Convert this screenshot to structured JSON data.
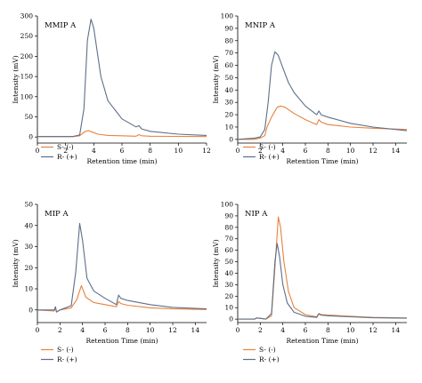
{
  "colors": {
    "s_minus": "#e8823c",
    "r_plus": "#5d6f8a"
  },
  "chart_data": [
    {
      "type": "line",
      "title": "MMIP A",
      "xlabel": "Retention time (min)",
      "ylabel": "Intensity (mV)",
      "xlim": [
        0,
        12
      ],
      "ylim": [
        -15,
        300
      ],
      "xticks": [
        0,
        2,
        4,
        6,
        8,
        10,
        12
      ],
      "yticks": [
        0,
        50,
        100,
        150,
        200,
        250,
        300
      ],
      "legend": [
        "S- (-)",
        "R- (+)"
      ],
      "series": [
        {
          "name": "S- (-)",
          "x": [
            0,
            2.5,
            3.0,
            3.3,
            3.6,
            3.9,
            4.3,
            5.0,
            6.0,
            7.0,
            7.2,
            7.4,
            8,
            10,
            12
          ],
          "y": [
            1,
            1,
            3,
            12,
            16,
            12,
            7,
            4,
            3,
            2,
            6,
            3,
            2,
            1.5,
            1
          ]
        },
        {
          "name": "R- (+)",
          "x": [
            0,
            2.5,
            3.0,
            3.3,
            3.55,
            3.8,
            4.0,
            4.5,
            5.0,
            6.0,
            7.0,
            7.2,
            7.4,
            8,
            10,
            12
          ],
          "y": [
            1,
            1,
            5,
            70,
            240,
            292,
            270,
            150,
            90,
            45,
            25,
            28,
            20,
            14,
            7,
            4
          ]
        }
      ]
    },
    {
      "type": "line",
      "title": "MNIP A",
      "xlabel": "Retention Time (min)",
      "ylabel": "Intensity (mV)",
      "xlim": [
        0,
        15
      ],
      "ylim": [
        -3,
        100
      ],
      "xticks": [
        0,
        2,
        4,
        6,
        8,
        10,
        12,
        14
      ],
      "yticks": [
        0,
        10,
        20,
        30,
        40,
        50,
        60,
        70,
        80,
        90,
        100
      ],
      "legend": [
        "S- (-)",
        "R- (+)"
      ],
      "series": [
        {
          "name": "S- (-)",
          "x": [
            0,
            1.5,
            2.0,
            2.4,
            2.6,
            3.0,
            3.5,
            3.8,
            4.2,
            5.0,
            6.0,
            7.0,
            7.2,
            7.4,
            8.0,
            10,
            12,
            15
          ],
          "y": [
            0,
            0,
            1,
            3,
            10,
            18,
            26,
            27,
            26,
            21,
            16,
            12,
            16,
            14,
            12,
            10,
            9,
            8
          ]
        },
        {
          "name": "R- (+)",
          "x": [
            0,
            1.5,
            2.0,
            2.4,
            2.7,
            3.0,
            3.3,
            3.6,
            4.0,
            4.5,
            5.0,
            6.0,
            7.0,
            7.2,
            7.4,
            8.0,
            10,
            12,
            15
          ],
          "y": [
            0,
            1,
            2,
            8,
            30,
            60,
            71,
            68,
            58,
            46,
            38,
            27,
            20,
            23,
            20,
            18,
            13,
            10,
            7
          ]
        }
      ]
    },
    {
      "type": "line",
      "title": "MIP A",
      "xlabel": "Retention Time (min)",
      "ylabel": "Intensity (mV)",
      "xlim": [
        0,
        15
      ],
      "ylim": [
        -6,
        50
      ],
      "xticks": [
        0,
        2,
        4,
        6,
        8,
        10,
        12,
        14
      ],
      "yticks": [
        0,
        10,
        20,
        30,
        40,
        50
      ],
      "legend": [
        "S- (-)",
        "R- (+)"
      ],
      "series": [
        {
          "name": "S- (-)",
          "x": [
            0,
            1.5,
            1.6,
            1.7,
            2.0,
            3.0,
            3.5,
            3.9,
            4.3,
            5.0,
            6.0,
            7.0,
            7.2,
            7.4,
            8.0,
            10,
            12,
            15
          ],
          "y": [
            0,
            -0.5,
            1,
            -1,
            0,
            1,
            5,
            11.5,
            6,
            3.5,
            2.5,
            1.5,
            4,
            3,
            2.2,
            1,
            0.5,
            0.2
          ]
        },
        {
          "name": "R- (+)",
          "x": [
            0,
            1.5,
            1.6,
            1.7,
            2.0,
            3.0,
            3.4,
            3.75,
            4.0,
            4.4,
            5.0,
            6.0,
            7.0,
            7.2,
            7.4,
            8.0,
            10,
            12,
            15
          ],
          "y": [
            0,
            0,
            1.5,
            -1,
            0,
            2,
            18,
            41,
            33,
            15,
            9,
            5.5,
            2.5,
            7,
            5.5,
            4.5,
            2.5,
            1.2,
            0.5
          ]
        }
      ]
    },
    {
      "type": "line",
      "title": "NIP A",
      "xlabel": "Retention Time (min)",
      "ylabel": "Intensity (mV)",
      "xlim": [
        0,
        15
      ],
      "ylim": [
        -3,
        100
      ],
      "xticks": [
        0,
        2,
        4,
        6,
        8,
        10,
        12,
        14
      ],
      "yticks": [
        0,
        10,
        20,
        30,
        40,
        50,
        60,
        70,
        80,
        90,
        100
      ],
      "legend": [
        "S- (-)",
        "R- (+)"
      ],
      "series": [
        {
          "name": "S- (-)",
          "x": [
            0,
            1.5,
            1.7,
            2.5,
            3.0,
            3.3,
            3.6,
            3.8,
            4.1,
            4.5,
            5.0,
            6.0,
            7.0,
            7.2,
            7.4,
            8.0,
            10,
            12,
            15
          ],
          "y": [
            0,
            0,
            1,
            0,
            3,
            45,
            89,
            80,
            50,
            24,
            10,
            4,
            2,
            5,
            4,
            3.5,
            2.5,
            1.5,
            1
          ]
        },
        {
          "name": "R- (+)",
          "x": [
            0,
            1.5,
            1.7,
            2.5,
            3.0,
            3.3,
            3.5,
            3.7,
            4.0,
            4.4,
            5.0,
            6.0,
            7.0,
            7.2,
            7.4,
            8.0,
            10,
            12,
            15
          ],
          "y": [
            0,
            0,
            1,
            0,
            5,
            50,
            66,
            55,
            30,
            14,
            6,
            2.5,
            1.5,
            4.5,
            3.5,
            3,
            2,
            1.2,
            0.8
          ]
        }
      ]
    }
  ]
}
